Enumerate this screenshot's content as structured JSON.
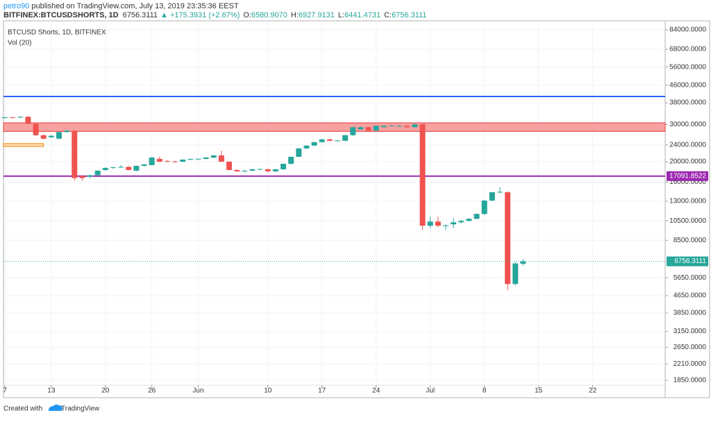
{
  "header": {
    "author": "petro90",
    "published": " published on TradingView.com, July 13, 2019 23:35:36 EEST",
    "symbol": "BITFINEX:BTCUSDSHORTS, 1D",
    "price": "6756.3111",
    "change": "▲ +175.3931 (+2.67%)",
    "ohlc": [
      {
        "label": "O:",
        "value": "6580.9070"
      },
      {
        "label": "H:",
        "value": "6927.9131"
      },
      {
        "label": "L:",
        "value": "6441.4731"
      },
      {
        "label": "C:",
        "value": "6756.3111"
      }
    ]
  },
  "chart_data": {
    "type": "candlestick",
    "title": "BTCUSD Shorts, 1D, BITFINEX",
    "subtitle": "Vol (20)",
    "up_color": "#26a69a",
    "down_color": "#ef5350",
    "log_scale": true,
    "grid": true,
    "x": [
      0,
      1,
      2,
      3,
      4,
      5,
      6,
      7,
      8,
      9,
      10,
      11,
      12,
      13,
      14,
      15,
      16,
      17,
      18,
      19,
      20,
      21,
      22,
      23,
      24,
      25,
      26,
      27,
      28,
      29,
      30,
      31,
      32,
      33,
      34,
      35,
      36,
      37,
      38,
      39,
      40,
      41,
      42,
      43,
      44,
      45,
      46,
      47,
      48,
      49,
      50,
      51,
      52,
      53,
      54,
      55,
      56,
      57,
      58,
      59,
      60,
      61,
      62,
      63,
      64,
      65,
      66,
      67
    ],
    "open": [
      32300,
      32400,
      32350,
      32600,
      30230,
      26680,
      26080,
      25690,
      27600,
      28030,
      17130,
      17000,
      17260,
      18270,
      18690,
      18830,
      18900,
      18140,
      19110,
      19260,
      20610,
      20150,
      20050,
      20000,
      20460,
      20610,
      20610,
      20930,
      21410,
      20000,
      18270,
      18000,
      18140,
      18410,
      18410,
      18000,
      18410,
      19550,
      21090,
      23110,
      23820,
      24740,
      25500,
      25110,
      25110,
      26680,
      28450,
      29110,
      28030,
      29110,
      29550,
      29330,
      29550,
      29110,
      30000,
      9960,
      10420,
      9960,
      10110,
      10340,
      10500,
      10740,
      11320,
      13100,
      14340,
      14340,
      5280,
      6580.907
    ],
    "high": [
      32600,
      32700,
      32800,
      32900,
      30400,
      26900,
      26800,
      27700,
      28200,
      28100,
      17300,
      17400,
      18200,
      18800,
      18900,
      19260,
      19000,
      19200,
      19500,
      21000,
      21100,
      20300,
      20200,
      20500,
      20700,
      20700,
      21000,
      21500,
      22590,
      20100,
      18400,
      18300,
      18500,
      18600,
      18600,
      18500,
      19600,
      21100,
      23200,
      23900,
      24800,
      25600,
      25700,
      25300,
      26800,
      29200,
      29300,
      29300,
      29600,
      29700,
      29800,
      29700,
      29700,
      30300,
      30200,
      11000,
      11000,
      10100,
      10800,
      10600,
      10800,
      11400,
      13200,
      14400,
      15120,
      14500,
      6700,
      6927.9131
    ],
    "low": [
      32100,
      32200,
      32100,
      30100,
      26500,
      25500,
      25900,
      25500,
      27400,
      16240,
      16240,
      16700,
      17100,
      18100,
      18500,
      18700,
      18200,
      18000,
      19000,
      19200,
      19900,
      19900,
      19800,
      19900,
      20300,
      20400,
      20500,
      20800,
      19900,
      18200,
      17900,
      17800,
      18000,
      18300,
      17900,
      17900,
      18300,
      19400,
      21000,
      23000,
      23700,
      24600,
      25000,
      24900,
      25000,
      26500,
      28300,
      27900,
      27900,
      29000,
      29400,
      29200,
      29000,
      29000,
      9520,
      9700,
      9800,
      9520,
      9700,
      10200,
      10400,
      10700,
      11200,
      13000,
      14200,
      4940,
      5200,
      6441.4731
    ],
    "close": [
      32400,
      32350,
      32600,
      30230,
      26680,
      25690,
      26500,
      27600,
      28030,
      16740,
      16740,
      17260,
      18140,
      18690,
      18830,
      18900,
      18270,
      19110,
      19400,
      20930,
      20000,
      20000,
      19950,
      20460,
      20610,
      20650,
      20930,
      21410,
      20000,
      18270,
      18000,
      18140,
      18410,
      18450,
      18000,
      18410,
      19550,
      21090,
      23110,
      23820,
      24740,
      25500,
      25110,
      25200,
      26680,
      29110,
      29110,
      28030,
      29550,
      29550,
      29600,
      29550,
      29110,
      30000,
      9960,
      10420,
      9960,
      10000,
      10340,
      10500,
      10740,
      11320,
      13100,
      14340,
      14400,
      5280,
      6605,
      6756.3111
    ],
    "xlim": [
      -0.18,
      85.37
    ],
    "ylim": [
      1755,
      92670
    ],
    "xticks": [
      {
        "value": 0,
        "label": "7"
      },
      {
        "value": 6,
        "label": "13"
      },
      {
        "value": 13,
        "label": "20"
      },
      {
        "value": 19,
        "label": "26"
      },
      {
        "value": 25,
        "label": "Jun"
      },
      {
        "value": 34,
        "label": "10"
      },
      {
        "value": 41,
        "label": "17"
      },
      {
        "value": 48,
        "label": "24"
      },
      {
        "value": 55,
        "label": "Jul"
      },
      {
        "value": 62,
        "label": "8"
      },
      {
        "value": 69,
        "label": "15"
      },
      {
        "value": 76,
        "label": "22"
      }
    ],
    "yticks": [
      {
        "value": 84000,
        "label": "84000.0000"
      },
      {
        "value": 68000,
        "label": "68000.0000"
      },
      {
        "value": 56000,
        "label": "56000.0000"
      },
      {
        "value": 46000,
        "label": "46000.0000"
      },
      {
        "value": 38000,
        "label": "38000.0000"
      },
      {
        "value": 30000,
        "label": "30000.0000"
      },
      {
        "value": 24000,
        "label": "24000.0000"
      },
      {
        "value": 20000,
        "label": "20000.0000"
      },
      {
        "value": 16000,
        "label": "16000.0000"
      },
      {
        "value": 13000,
        "label": "13000.0000"
      },
      {
        "value": 10500,
        "label": "10500.0000"
      },
      {
        "value": 8500,
        "label": "8500.0000"
      },
      {
        "value": 5650,
        "label": "5650.0000"
      },
      {
        "value": 4650,
        "label": "4650.0000"
      },
      {
        "value": 3850,
        "label": "3850.0000"
      },
      {
        "value": 3150,
        "label": "3150.0000"
      },
      {
        "value": 2650,
        "label": "2650.0000"
      },
      {
        "value": 2210,
        "label": "2210.0000"
      },
      {
        "value": 1850,
        "label": "1850.0000"
      }
    ],
    "zones": [
      {
        "low": 27810,
        "high": 30530,
        "fill": "#f7a1a1",
        "stroke": "#e53935",
        "x_start": -0.18,
        "x_end": 85.37
      },
      {
        "low": 23600,
        "high": 24350,
        "fill": "#ffe0b2",
        "stroke": "#f57c00",
        "x_start": -0.18,
        "x_end": 5
      }
    ],
    "hlines": [
      {
        "value": 40670,
        "color": "#2962ff"
      },
      {
        "value": 17091.8522,
        "color": "#9c27b0",
        "label_fill": "#9c27b0"
      }
    ],
    "last_price": 6756.3111,
    "last_price_color": "#26a69a"
  },
  "footer": {
    "created": "Created with",
    "brand": "TradingView"
  }
}
